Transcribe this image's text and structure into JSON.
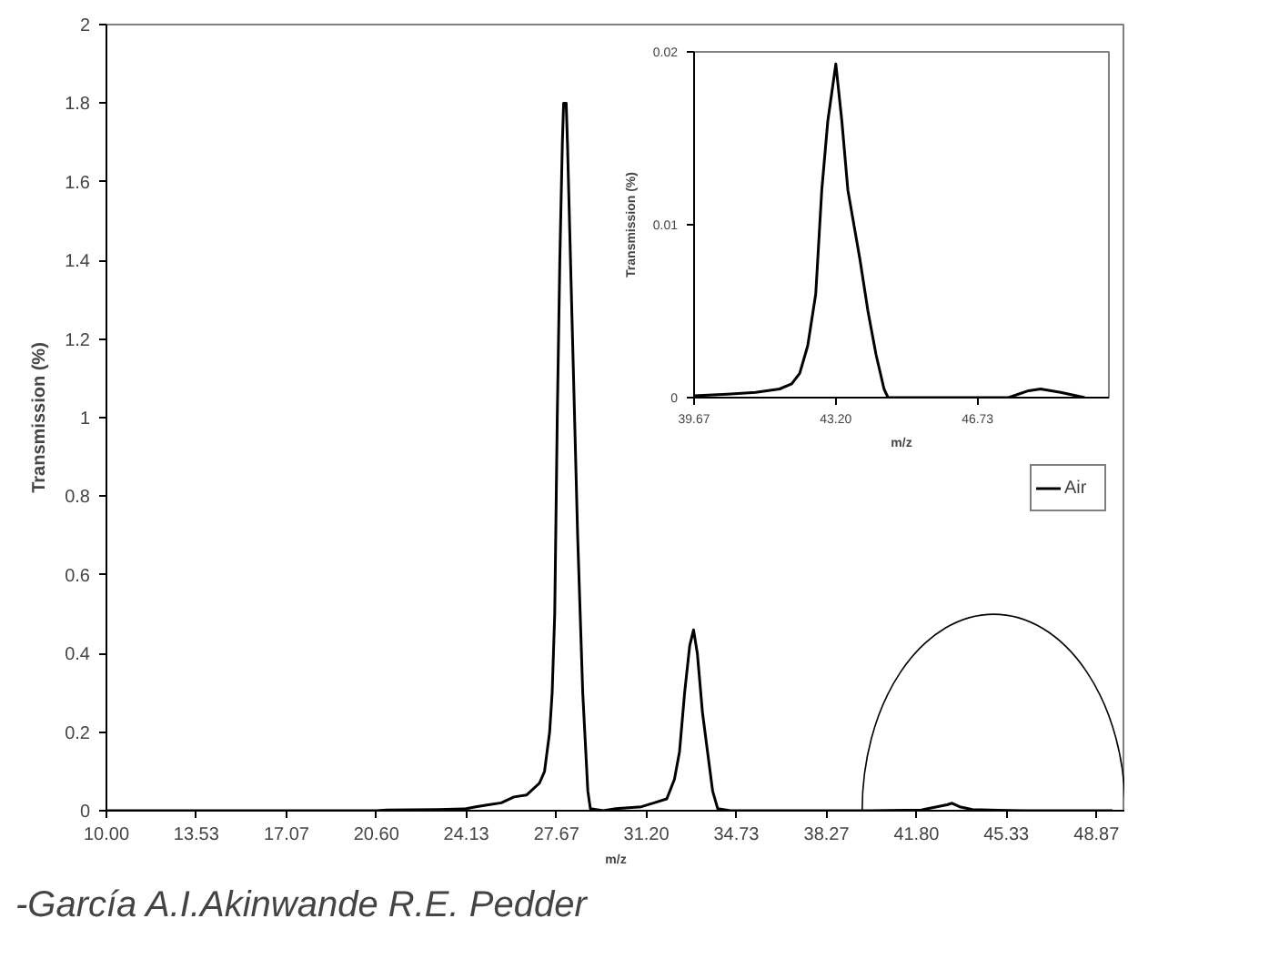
{
  "chart_data": [
    {
      "type": "line",
      "xlabel": "m/z",
      "ylabel": "Transmission (%)",
      "xlim": [
        10,
        50
      ],
      "ylim": [
        0,
        2
      ],
      "xticks": [
        {
          "value": 10,
          "label": "10.00"
        },
        13.53,
        17.07,
        {
          "value": 20.6,
          "label": "20.60"
        },
        24.13,
        27.67,
        {
          "value": 31.2,
          "label": "31.20"
        },
        34.73,
        38.27,
        {
          "value": 41.8,
          "label": "41.80"
        },
        45.33,
        48.87
      ],
      "yticks": [
        0,
        0.2,
        0.4,
        0.6,
        0.8,
        1,
        1.2,
        1.4,
        1.6,
        1.8,
        2
      ],
      "x": [
        10,
        15,
        20.6,
        21,
        23,
        24.13,
        24.5,
        25,
        25.5,
        26,
        26.5,
        27,
        27.2,
        27.4,
        27.5,
        27.6,
        27.7,
        27.8,
        27.9,
        27.95,
        28.05,
        28.1,
        28.3,
        28.5,
        28.7,
        28.9,
        29,
        29.5,
        30,
        31,
        31.5,
        32,
        32.3,
        32.5,
        32.7,
        32.9,
        33.05,
        33.2,
        33.4,
        33.6,
        33.8,
        34,
        34.5,
        40,
        42,
        43,
        43.2,
        43.5,
        44,
        45,
        46,
        48,
        49.5
      ],
      "series": [
        {
          "name": "Air",
          "color": "#000000",
          "values": [
            0,
            0,
            0,
            0.002,
            0.003,
            0.005,
            0.01,
            0.015,
            0.02,
            0.035,
            0.04,
            0.07,
            0.1,
            0.2,
            0.3,
            0.5,
            1.0,
            1.4,
            1.7,
            1.8,
            1.8,
            1.7,
            1.2,
            0.7,
            0.3,
            0.05,
            0.005,
            0,
            0.005,
            0.01,
            0.02,
            0.03,
            0.08,
            0.15,
            0.3,
            0.42,
            0.46,
            0.4,
            0.25,
            0.15,
            0.05,
            0.005,
            0,
            0,
            0.002,
            0.015,
            0.019,
            0.01,
            0.003,
            0.001,
            0,
            0,
            0
          ]
        }
      ],
      "legend": "right",
      "grid": false,
      "marker": "none",
      "line_style": "solid",
      "annotations": [
        "-García A.I.Akinwande R.E. Pedder"
      ]
    },
    {
      "type": "line",
      "xlabel": "m/z",
      "ylabel": "Transmission (%)",
      "xlim": [
        39.67,
        50
      ],
      "ylim": [
        0,
        0.02
      ],
      "xticks": [
        39.67,
        {
          "value": 43.2,
          "label": "43.20"
        },
        46.73
      ],
      "yticks": [
        0,
        0.01,
        0.02
      ],
      "x": [
        39.67,
        40.5,
        41.2,
        41.8,
        42.1,
        42.3,
        42.5,
        42.7,
        42.85,
        43,
        43.2,
        43.35,
        43.5,
        43.8,
        44,
        44.2,
        44.4,
        44.5,
        45.5,
        47.5,
        48,
        48.3,
        48.8,
        49.4
      ],
      "series": [
        {
          "color": "#000000",
          "values": [
            0.0001,
            0.0002,
            0.0003,
            0.0005,
            0.0008,
            0.0014,
            0.003,
            0.006,
            0.012,
            0.016,
            0.0193,
            0.016,
            0.012,
            0.008,
            0.005,
            0.0025,
            0.0005,
            0,
            0,
            0,
            0.0004,
            0.0005,
            0.0003,
            0
          ]
        }
      ],
      "grid": false,
      "marker": "none",
      "line_style": "solid"
    }
  ]
}
